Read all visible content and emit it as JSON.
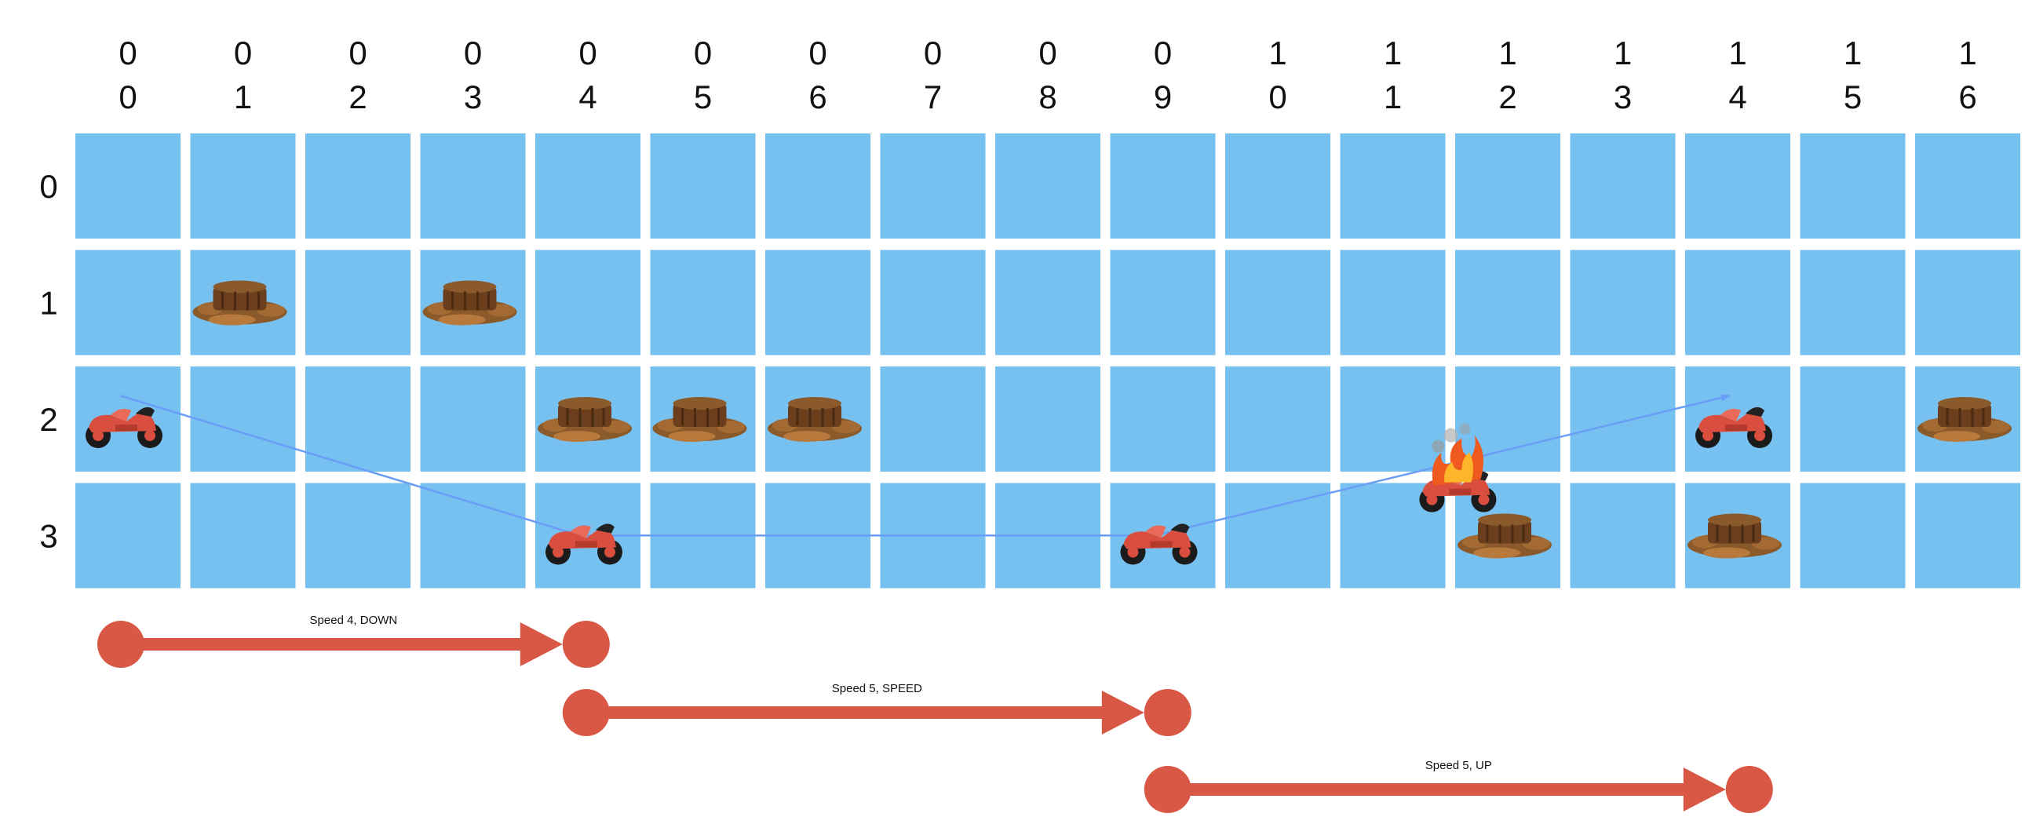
{
  "grid": {
    "columns": [
      {
        "d1": "0",
        "d2": "0"
      },
      {
        "d1": "0",
        "d2": "1"
      },
      {
        "d1": "0",
        "d2": "2"
      },
      {
        "d1": "0",
        "d2": "3"
      },
      {
        "d1": "0",
        "d2": "4"
      },
      {
        "d1": "0",
        "d2": "5"
      },
      {
        "d1": "0",
        "d2": "6"
      },
      {
        "d1": "0",
        "d2": "7"
      },
      {
        "d1": "0",
        "d2": "8"
      },
      {
        "d1": "0",
        "d2": "9"
      },
      {
        "d1": "1",
        "d2": "0"
      },
      {
        "d1": "1",
        "d2": "1"
      },
      {
        "d1": "1",
        "d2": "2"
      },
      {
        "d1": "1",
        "d2": "3"
      },
      {
        "d1": "1",
        "d2": "4"
      },
      {
        "d1": "1",
        "d2": "5"
      },
      {
        "d1": "1",
        "d2": "6"
      }
    ],
    "rows": [
      "0",
      "1",
      "2",
      "3"
    ],
    "cell_color": "#77c1f1"
  },
  "mud_puddles": [
    {
      "row": 1,
      "col": 1
    },
    {
      "row": 1,
      "col": 3
    },
    {
      "row": 2,
      "col": 4
    },
    {
      "row": 2,
      "col": 5
    },
    {
      "row": 2,
      "col": 6
    },
    {
      "row": 2,
      "col": 16
    },
    {
      "row": 3,
      "col": 12
    },
    {
      "row": 3,
      "col": 14
    }
  ],
  "bikes": [
    {
      "row": 2,
      "col": 0,
      "state": "motorcycle-icon"
    },
    {
      "row": 3,
      "col": 4,
      "state": "motorcycle-icon"
    },
    {
      "row": 3,
      "col": 9,
      "state": "motorcycle-icon"
    },
    {
      "row": 2,
      "col": 14,
      "state": "motorcycle-icon"
    },
    {
      "row": 2.55,
      "col": 11.6,
      "state": "crashed-motorcycle-icon"
    }
  ],
  "trajectory": {
    "color": "#6a9df5",
    "points": [
      {
        "row": 2.25,
        "col": 0
      },
      {
        "row": 3.45,
        "col": 4
      },
      {
        "row": 3.45,
        "col": 9
      },
      {
        "row": 2.25,
        "col": 14
      }
    ]
  },
  "moves": [
    {
      "label": "Speed 4, DOWN",
      "from_col": 0,
      "to_col": 4
    },
    {
      "label": "Speed 5, SPEED",
      "from_col": 4,
      "to_col": 9
    },
    {
      "label": "Speed 5, UP",
      "from_col": 9,
      "to_col": 14
    }
  ],
  "move_color": "#d95745"
}
